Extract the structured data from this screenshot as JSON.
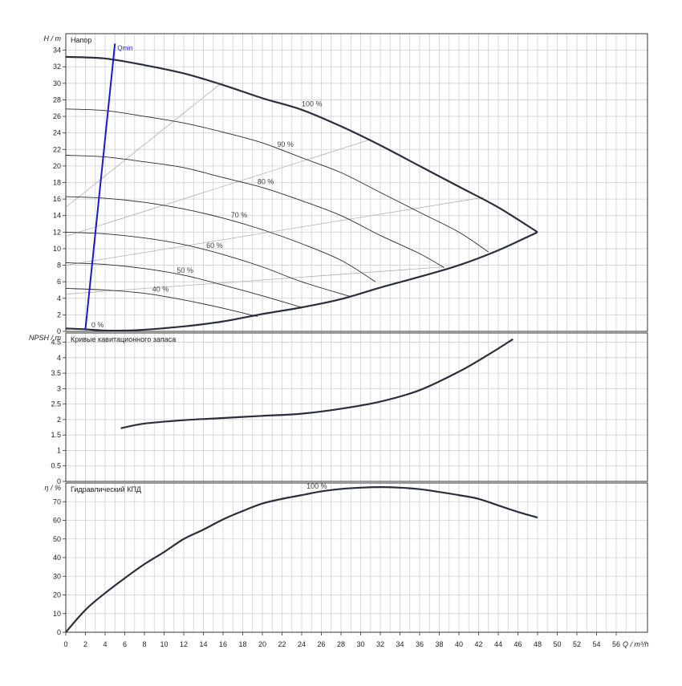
{
  "x_axis": {
    "min": 0,
    "max": 58,
    "ticks": [
      0,
      2,
      4,
      6,
      8,
      10,
      12,
      14,
      16,
      18,
      20,
      22,
      24,
      26,
      28,
      30,
      32,
      34,
      36,
      38,
      40,
      42,
      44,
      46,
      48,
      50,
      52,
      54,
      56
    ],
    "label": "Q / m³/h"
  },
  "chart_data": [
    {
      "type": "line",
      "title": "Напор",
      "ylabel": "H / m",
      "ylim": [
        0,
        36
      ],
      "yticks": [
        0,
        2,
        4,
        6,
        8,
        10,
        12,
        14,
        16,
        18,
        20,
        22,
        24,
        26,
        28,
        30,
        32,
        34
      ],
      "grid": true,
      "series": [
        {
          "name": "100 %",
          "bold": true,
          "points": [
            [
              0,
              33.2
            ],
            [
              4,
              33.0
            ],
            [
              8,
              32.2
            ],
            [
              12,
              31.2
            ],
            [
              16,
              29.8
            ],
            [
              20,
              28.2
            ],
            [
              24,
              26.8
            ],
            [
              28,
              24.8
            ],
            [
              32,
              22.5
            ],
            [
              36,
              20.0
            ],
            [
              40,
              17.5
            ],
            [
              44,
              15.0
            ],
            [
              48,
              12.0
            ]
          ]
        },
        {
          "name": "90 %",
          "points": [
            [
              0,
              26.9
            ],
            [
              4,
              26.7
            ],
            [
              8,
              26.0
            ],
            [
              12,
              25.2
            ],
            [
              16,
              24.1
            ],
            [
              20,
              22.8
            ],
            [
              24,
              21.0
            ],
            [
              28,
              19.2
            ],
            [
              32,
              16.8
            ],
            [
              36,
              14.4
            ],
            [
              40,
              12.0
            ],
            [
              43,
              9.6
            ]
          ]
        },
        {
          "name": "80 %",
          "points": [
            [
              0,
              21.3
            ],
            [
              4,
              21.1
            ],
            [
              8,
              20.5
            ],
            [
              12,
              19.8
            ],
            [
              16,
              18.6
            ],
            [
              20,
              17.4
            ],
            [
              24,
              15.8
            ],
            [
              28,
              14.0
            ],
            [
              32,
              11.6
            ],
            [
              36,
              9.4
            ],
            [
              38.5,
              7.7
            ]
          ]
        },
        {
          "name": "70 %",
          "points": [
            [
              0,
              16.3
            ],
            [
              4,
              16.1
            ],
            [
              8,
              15.6
            ],
            [
              12,
              14.8
            ],
            [
              16,
              13.7
            ],
            [
              20,
              12.3
            ],
            [
              24,
              10.6
            ],
            [
              28,
              8.6
            ],
            [
              31.5,
              6.0
            ]
          ]
        },
        {
          "name": "60 %",
          "points": [
            [
              0,
              12.0
            ],
            [
              4,
              11.8
            ],
            [
              8,
              11.3
            ],
            [
              12,
              10.5
            ],
            [
              16,
              9.3
            ],
            [
              20,
              7.8
            ],
            [
              24,
              6.0
            ],
            [
              29,
              4.2
            ]
          ]
        },
        {
          "name": "50 %",
          "points": [
            [
              0,
              8.3
            ],
            [
              4,
              8.1
            ],
            [
              8,
              7.6
            ],
            [
              12,
              6.8
            ],
            [
              16,
              5.6
            ],
            [
              20,
              4.3
            ],
            [
              24,
              2.9
            ]
          ]
        },
        {
          "name": "40 %",
          "points": [
            [
              0,
              5.2
            ],
            [
              4,
              5.0
            ],
            [
              8,
              4.6
            ],
            [
              12,
              3.8
            ],
            [
              16,
              2.8
            ],
            [
              19.5,
              1.8
            ]
          ]
        },
        {
          "name": "0 %",
          "bold": true,
          "points": [
            [
              0,
              0.35
            ],
            [
              2,
              0.25
            ],
            [
              4,
              0.1
            ],
            [
              6,
              0.1
            ],
            [
              8,
              0.2
            ],
            [
              12,
              0.6
            ],
            [
              16,
              1.2
            ],
            [
              20,
              2.1
            ],
            [
              24,
              2.9
            ],
            [
              28,
              3.9
            ],
            [
              32,
              5.3
            ],
            [
              36,
              6.6
            ],
            [
              40,
              8.0
            ],
            [
              44,
              9.8
            ],
            [
              48,
              12.0
            ]
          ]
        }
      ],
      "labels": [
        {
          "text": "100 %",
          "x": 24,
          "y": 27.2
        },
        {
          "text": "90 %",
          "x": 21.5,
          "y": 22.3
        },
        {
          "text": "80 %",
          "x": 19.5,
          "y": 17.8
        },
        {
          "text": "70 %",
          "x": 16.8,
          "y": 13.8
        },
        {
          "text": "60 %",
          "x": 14.3,
          "y": 10.1
        },
        {
          "text": "50 %",
          "x": 11.3,
          "y": 7.1
        },
        {
          "text": "40 %",
          "x": 8.8,
          "y": 4.8
        },
        {
          "text": "0 %",
          "x": 2.6,
          "y": 0.5
        }
      ],
      "efficiency_lines": [
        {
          "points": [
            [
              0,
              15.0
            ],
            [
              16,
              30.2
            ]
          ]
        },
        {
          "points": [
            [
              0,
              11.5
            ],
            [
              31,
              23.2
            ]
          ]
        },
        {
          "points": [
            [
              0,
              8.0
            ],
            [
              42.5,
              16.2
            ]
          ]
        },
        {
          "points": [
            [
              0,
              4.5
            ],
            [
              38.5,
              7.8
            ]
          ]
        }
      ],
      "qmin": {
        "label": "Qmin",
        "color": "#1a1acc",
        "points": [
          [
            2,
            0.3
          ],
          [
            5,
            34.8
          ]
        ]
      }
    },
    {
      "type": "line",
      "title": "Кривые кавитационного запаса",
      "ylabel": "NPSH / m",
      "ylim": [
        0,
        4.8
      ],
      "yticks": [
        0,
        0.5,
        1,
        1.5,
        2,
        2.5,
        3,
        3.5,
        4,
        4.5
      ],
      "ytick_labels": [
        "0",
        "0.5",
        "1",
        "1.5",
        "2",
        "2.5",
        "3",
        "3.5",
        "4",
        "4.5"
      ],
      "grid": true,
      "series": [
        {
          "points": [
            [
              5.6,
              1.72
            ],
            [
              8,
              1.87
            ],
            [
              12,
              1.98
            ],
            [
              16,
              2.05
            ],
            [
              20,
              2.12
            ],
            [
              24,
              2.19
            ],
            [
              28,
              2.35
            ],
            [
              32,
              2.58
            ],
            [
              36,
              2.95
            ],
            [
              40,
              3.55
            ],
            [
              43,
              4.1
            ],
            [
              45.5,
              4.6
            ]
          ]
        }
      ]
    },
    {
      "type": "line",
      "title": "Гидравлический КПД",
      "ylabel": "η / %",
      "ylim": [
        0,
        80
      ],
      "yticks": [
        0,
        10,
        20,
        30,
        40,
        50,
        60,
        70
      ],
      "grid": true,
      "series": [
        {
          "name": "100 %",
          "points": [
            [
              0,
              0
            ],
            [
              2,
              12
            ],
            [
              4,
              21
            ],
            [
              6,
              29
            ],
            [
              8,
              36.5
            ],
            [
              10,
              43
            ],
            [
              12,
              50
            ],
            [
              14,
              55
            ],
            [
              16,
              60.5
            ],
            [
              18,
              65
            ],
            [
              20,
              69
            ],
            [
              22,
              71.5
            ],
            [
              24,
              73.5
            ],
            [
              26,
              75.5
            ],
            [
              28,
              76.8
            ],
            [
              30,
              77.5
            ],
            [
              32,
              77.8
            ],
            [
              34,
              77.5
            ],
            [
              36,
              76.7
            ],
            [
              38,
              75.2
            ],
            [
              40,
              73.5
            ],
            [
              42,
              71.5
            ],
            [
              44,
              68
            ],
            [
              46,
              64.5
            ],
            [
              48,
              61.5
            ]
          ]
        }
      ],
      "labels": [
        {
          "text": "100 %",
          "x": 24.5,
          "y": 77
        }
      ]
    }
  ]
}
